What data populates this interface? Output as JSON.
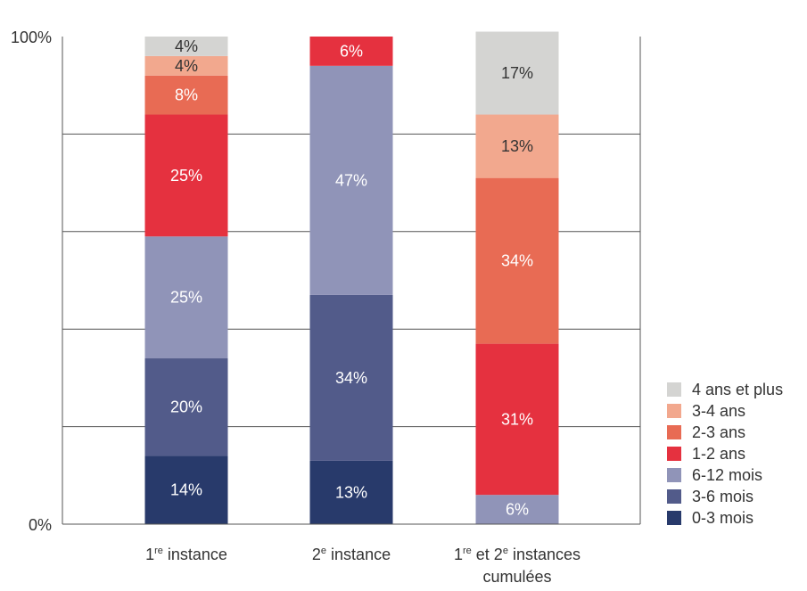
{
  "chart_data": {
    "type": "bar",
    "stacked": true,
    "title": "",
    "xlabel": "",
    "ylabel": "",
    "ylim": [
      0,
      100
    ],
    "y_ticks": [
      {
        "value": 0,
        "label": "0%"
      },
      {
        "value": 100,
        "label": "100%"
      }
    ],
    "grid": true,
    "gridlines": [
      20,
      40,
      60,
      80
    ],
    "legend_position": "bottom-right",
    "categories": [
      {
        "line1": "1",
        "sup1": "re",
        "rest1": " instance",
        "line2": ""
      },
      {
        "line1": "2",
        "sup1": "e",
        "rest1": " instance",
        "line2": ""
      },
      {
        "line1": "1",
        "sup1": "re",
        "rest1": " et 2",
        "sup2": "e",
        "rest2": " instances",
        "line2": "cumulées"
      }
    ],
    "series": [
      {
        "name": "0-3 mois",
        "color": "#283a6b",
        "text_color": "#ffffff",
        "values": [
          14,
          13,
          0
        ],
        "labels": [
          "14%",
          "13%",
          ""
        ]
      },
      {
        "name": "3-6 mois",
        "color": "#525b8a",
        "text_color": "#ffffff",
        "values": [
          20,
          34,
          0
        ],
        "labels": [
          "20%",
          "34%",
          ""
        ]
      },
      {
        "name": "6-12 mois",
        "color": "#9094b8",
        "text_color": "#ffffff",
        "values": [
          25,
          47,
          6
        ],
        "labels": [
          "25%",
          "47%",
          "6%"
        ]
      },
      {
        "name": "1-2 ans",
        "color": "#e5313f",
        "text_color": "#ffffff",
        "values": [
          25,
          6,
          31
        ],
        "labels": [
          "25%",
          "6%",
          "31%"
        ]
      },
      {
        "name": "2-3 ans",
        "color": "#e86b54",
        "text_color": "#ffffff",
        "values": [
          8,
          0,
          34
        ],
        "labels": [
          "8%",
          "",
          "34%"
        ]
      },
      {
        "name": "3-4 ans",
        "color": "#f2a88e",
        "text_color": "#333333",
        "values": [
          4,
          0,
          13
        ],
        "labels": [
          "4%",
          "",
          "13%"
        ]
      },
      {
        "name": "4 ans et plus",
        "color": "#d4d4d2",
        "text_color": "#333333",
        "values": [
          4,
          0,
          17
        ],
        "labels": [
          "4%",
          "",
          "17%"
        ]
      }
    ]
  }
}
